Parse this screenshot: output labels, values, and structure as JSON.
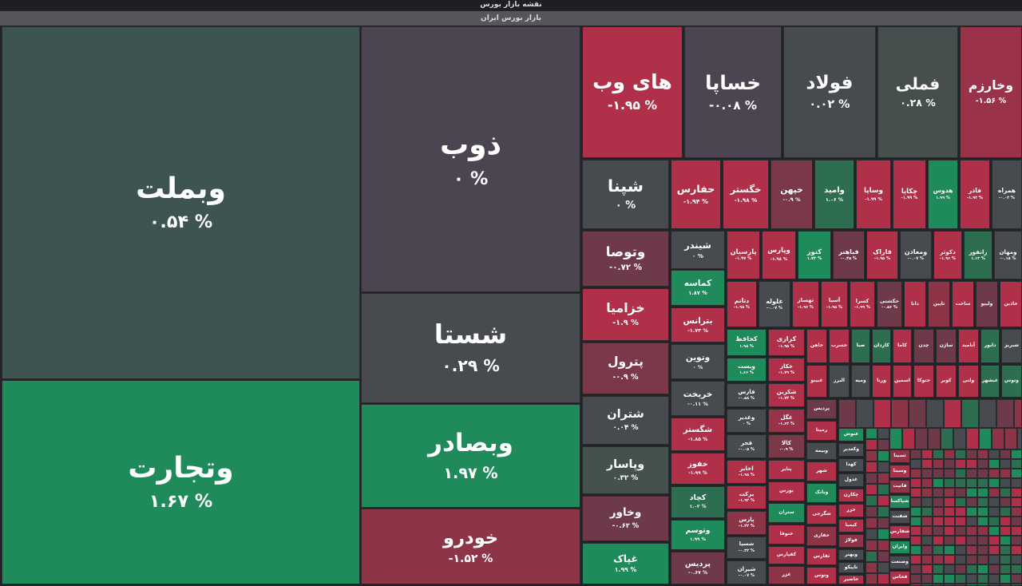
{
  "header": {
    "title": "نقشه بازار بورس",
    "subtitle": "بازار بورس ایران"
  },
  "tiles": [
    {
      "name": "وبملت",
      "change": "۰.۵۴ %",
      "color": "#3d5450"
    },
    {
      "name": "وتجارت",
      "change": "۱.۶۷ %",
      "color": "#1f8a5a"
    },
    {
      "name": "ذوب",
      "change": "۰ %",
      "color": "#4a4550"
    },
    {
      "name": "شستا",
      "change": "۰.۲۹ %",
      "color": "#474a4e"
    },
    {
      "name": "وبصادر",
      "change": "۱.۹۷ %",
      "color": "#1f8a5a"
    },
    {
      "name": "خودرو",
      "change": "-۱.۵۲ %",
      "color": "#8e3447"
    },
    {
      "name": "های وب",
      "change": "-۱.۹۵ %",
      "color": "#b0304a"
    },
    {
      "name": "خساپا",
      "change": "-۰.۰۸ %",
      "color": "#4c4450"
    },
    {
      "name": "فولاد",
      "change": "۰.۰۲ %",
      "color": "#474a4e"
    },
    {
      "name": "فملی",
      "change": "۰.۲۸ %",
      "color": "#464e4e"
    },
    {
      "name": "وخارزم",
      "change": "-۱.۵۶ %",
      "color": "#9a3349"
    },
    {
      "name": "شپنا",
      "change": "۰ %",
      "color": "#474a4e"
    },
    {
      "name": "وتوصا",
      "change": "-۰.۷۲ %",
      "color": "#6e3a4a"
    },
    {
      "name": "خزامیا",
      "change": "-۱.۹ %",
      "color": "#b0304a"
    },
    {
      "name": "پترول",
      "change": "-۰.۹ %",
      "color": "#7a3848"
    },
    {
      "name": "شتران",
      "change": "۰.۰۴ %",
      "color": "#474a4e"
    },
    {
      "name": "وپاسار",
      "change": "۰.۳۲ %",
      "color": "#45514f"
    },
    {
      "name": "وخاور",
      "change": "-۰.۶۲ %",
      "color": "#6e3a4a"
    },
    {
      "name": "غپاک",
      "change": "۱.۹۹ %",
      "color": "#1f8a5a"
    },
    {
      "name": "حفارس",
      "change": "-۱.۹۴ %",
      "color": "#b0304a"
    },
    {
      "name": "خگستر",
      "change": "-۱.۹۸ %",
      "color": "#b0304a"
    },
    {
      "name": "خپهن",
      "change": "-۰.۹ %",
      "color": "#7a3848"
    },
    {
      "name": "وامید",
      "change": "۱.۰۶ %",
      "color": "#2d6e50"
    },
    {
      "name": "وساپا",
      "change": "-۱.۹۹ %",
      "color": "#b0304a"
    },
    {
      "name": "چکاپا",
      "change": "-۱.۹۹ %",
      "color": "#b0304a"
    },
    {
      "name": "هدوس",
      "change": "۱.۹۹ %",
      "color": "#1f8a5a"
    },
    {
      "name": "فاذر",
      "change": "-۱.۹۳ %",
      "color": "#b0304a"
    },
    {
      "name": "همراه",
      "change": "-۰.۰۳ %",
      "color": "#474a4e"
    },
    {
      "name": "شیندر",
      "change": "۰ %",
      "color": "#474a4e"
    },
    {
      "name": "کماسه",
      "change": "۱.۸۷ %",
      "color": "#1f8a5a"
    },
    {
      "name": "پارسیان",
      "change": "-۱.۹۷ %",
      "color": "#b0304a"
    },
    {
      "name": "وپارس",
      "change": "-۱.۹۸ %",
      "color": "#b0304a"
    },
    {
      "name": "کنور",
      "change": "۱.۷۳ %",
      "color": "#1f8a5a"
    },
    {
      "name": "فباهنر",
      "change": "-۰.۴۵ %",
      "color": "#6e3a4a"
    },
    {
      "name": "فاراک",
      "change": "-۱.۹۵ %",
      "color": "#b0304a"
    },
    {
      "name": "ومعادن",
      "change": "-۰.۰۷ %",
      "color": "#474a4e"
    },
    {
      "name": "دکوثر",
      "change": "-۱.۹۶ %",
      "color": "#b0304a"
    },
    {
      "name": "رانفور",
      "change": "۱.۱۳ %",
      "color": "#2d6e50"
    },
    {
      "name": "ومهان",
      "change": "-۰.۱۸ %",
      "color": "#474a4e"
    },
    {
      "name": "دتاتم",
      "change": "-۱.۹۸ %",
      "color": "#b0304a"
    },
    {
      "name": "غلوله",
      "change": "-۰.۰۷ %",
      "color": "#474a4e"
    },
    {
      "name": "تهساز",
      "change": "-۱.۹۶ %",
      "color": "#b0304a"
    },
    {
      "name": "آسیا",
      "change": "-۱.۹۵ %",
      "color": "#b0304a"
    },
    {
      "name": "کسرا",
      "change": "-۱.۹۹ %",
      "color": "#b0304a"
    },
    {
      "name": "حکشتی",
      "change": "-۰.۵۶ %",
      "color": "#6e3a4a"
    },
    {
      "name": "دانا",
      "color": "#b0304a"
    },
    {
      "name": "تاپین",
      "color": "#8e3447"
    },
    {
      "name": "ساخت",
      "color": "#b0304a"
    },
    {
      "name": "ولیپو",
      "color": "#6e3a4a"
    },
    {
      "name": "خاذین",
      "color": "#b0304a"
    },
    {
      "name": "بترانس",
      "change": "-۱.۷۳ %",
      "color": "#b0304a"
    },
    {
      "name": "وتوین",
      "change": "۰ %",
      "color": "#474a4e"
    },
    {
      "name": "خریخت",
      "change": "-۰.۱۱ %",
      "color": "#474a4e"
    },
    {
      "name": "شگستر",
      "change": "-۱.۸۵ %",
      "color": "#b0304a"
    },
    {
      "name": "خفوز",
      "change": "-۱.۹۹ %",
      "color": "#b0304a"
    },
    {
      "name": "کچاد",
      "change": "۱.۰۲ %",
      "color": "#2d6e50"
    },
    {
      "name": "وتوسم",
      "change": "۱.۹۹ %",
      "color": "#1f8a5a"
    },
    {
      "name": "پردیس",
      "change": "-۰.۶۷ %",
      "color": "#6e3a4a"
    },
    {
      "name": "کحافظ",
      "change": "۱.۹۸ %",
      "color": "#1f8a5a"
    },
    {
      "name": "ویست",
      "change": "۱.۶۶ %",
      "color": "#1f8a5a"
    },
    {
      "name": "فارس",
      "change": "-۰.۵۸ %",
      "color": "#474a4e"
    },
    {
      "name": "وغدیر",
      "change": "۰ %",
      "color": "#474a4e"
    },
    {
      "name": "فجر",
      "change": "-۰.۰۵ %",
      "color": "#474a4e"
    },
    {
      "name": "اخابر",
      "change": "-۱.۹۸ %",
      "color": "#b0304a"
    },
    {
      "name": "برکت",
      "change": "-۱.۹۲ %",
      "color": "#b0304a"
    },
    {
      "name": "پارس",
      "change": "-۱.۲۲ %",
      "color": "#8e3447"
    },
    {
      "name": "شسپا",
      "change": "-۰.۳۲ %",
      "color": "#474a4e"
    },
    {
      "name": "شیران",
      "change": "-۰.۰۷ %",
      "color": "#474a4e"
    },
    {
      "name": "کرازی",
      "change": "-۱.۹۵ %",
      "color": "#b0304a"
    },
    {
      "name": "خکار",
      "change": "-۱.۷۹ %",
      "color": "#b0304a"
    },
    {
      "name": "شکربن",
      "change": "-۱.۷۴ %",
      "color": "#b0304a"
    },
    {
      "name": "غگل",
      "change": "-۱.۶۲ %",
      "color": "#9a3349"
    },
    {
      "name": "کالا",
      "change": "-۰.۹ %",
      "color": "#7a3848"
    },
    {
      "name": "پتایر",
      "color": "#b0304a"
    },
    {
      "name": "بورس",
      "color": "#b0304a"
    },
    {
      "name": "ستران",
      "color": "#1f8a5a"
    },
    {
      "name": "خنوفا",
      "color": "#b0304a"
    },
    {
      "name": "کفپارس",
      "color": "#b0304a"
    },
    {
      "name": "غزر",
      "color": "#8e3447"
    },
    {
      "name": "خاهن",
      "color": "#b0304a"
    },
    {
      "name": "خسرب",
      "color": "#b0304a"
    },
    {
      "name": "صبا",
      "color": "#2d6e50"
    },
    {
      "name": "کاردان",
      "color": "#2d6e50"
    },
    {
      "name": "کاما",
      "color": "#b0304a"
    },
    {
      "name": "چدن",
      "color": "#6e3a4a"
    },
    {
      "name": "ساژن",
      "color": "#6e3a4a"
    },
    {
      "name": "آنامید",
      "color": "#b0304a"
    },
    {
      "name": "دابور",
      "color": "#2d6e50"
    },
    {
      "name": "شبریز",
      "color": "#474a4e"
    },
    {
      "name": "غبینو",
      "color": "#b0304a"
    },
    {
      "name": "البرز",
      "color": "#474a4e"
    },
    {
      "name": "ومیه",
      "color": "#474a4e"
    },
    {
      "name": "ورنا",
      "color": "#b0304a"
    },
    {
      "name": "اسمین",
      "color": "#b0304a"
    },
    {
      "name": "حتوکا",
      "color": "#b0304a"
    },
    {
      "name": "کویر",
      "color": "#b0304a"
    },
    {
      "name": "ولتی",
      "color": "#b0304a"
    },
    {
      "name": "غبشهر",
      "color": "#2d6e50"
    },
    {
      "name": "وتوس",
      "color": "#2d6e50"
    },
    {
      "name": "پردیس",
      "color": "#6e3a4a"
    },
    {
      "name": "رمپنا",
      "color": "#b0304a"
    },
    {
      "name": "وبیمه",
      "color": "#474a4e"
    },
    {
      "name": "شهر",
      "color": "#b0304a"
    },
    {
      "name": "وبانک",
      "color": "#1f8a5a"
    },
    {
      "name": "شگرجی",
      "color": "#b0304a"
    },
    {
      "name": "حفاری",
      "color": "#8e3447"
    },
    {
      "name": "ثفارس",
      "color": "#b0304a"
    },
    {
      "name": "وتوس",
      "color": "#b0304a"
    },
    {
      "name": "غنوش",
      "color": "#1f8a5a"
    },
    {
      "name": "وکغدیر",
      "color": "#474a4e"
    },
    {
      "name": "کهدا",
      "color": "#474a4e"
    },
    {
      "name": "غدول",
      "color": "#474a4e"
    },
    {
      "name": "چکارن",
      "color": "#b0304a"
    },
    {
      "name": "خزر",
      "color": "#b0304a"
    },
    {
      "name": "کیمیا",
      "color": "#b0304a"
    },
    {
      "name": "فولاژ",
      "color": "#8e3447"
    },
    {
      "name": "وبهنر",
      "color": "#474a4e"
    },
    {
      "name": "تاپیکو",
      "color": "#474a4e"
    },
    {
      "name": "خاصیر",
      "color": "#b0304a"
    },
    {
      "name": "کاذر",
      "color": "#b0304a"
    },
    {
      "name": "ثسینا",
      "color": "#8e3447"
    },
    {
      "name": "وسینا",
      "color": "#b0304a"
    },
    {
      "name": "قاتیت",
      "color": "#8e3447"
    },
    {
      "name": "شپاکسا",
      "color": "#1f8a5a"
    },
    {
      "name": "شفنت",
      "color": "#474a4e"
    },
    {
      "name": "شفارس",
      "color": "#b0304a"
    },
    {
      "name": "وایران",
      "color": "#1f8a5a"
    },
    {
      "name": "وصنعت",
      "color": "#474a4e"
    },
    {
      "name": "فخاس",
      "color": "#b0304a"
    }
  ]
}
